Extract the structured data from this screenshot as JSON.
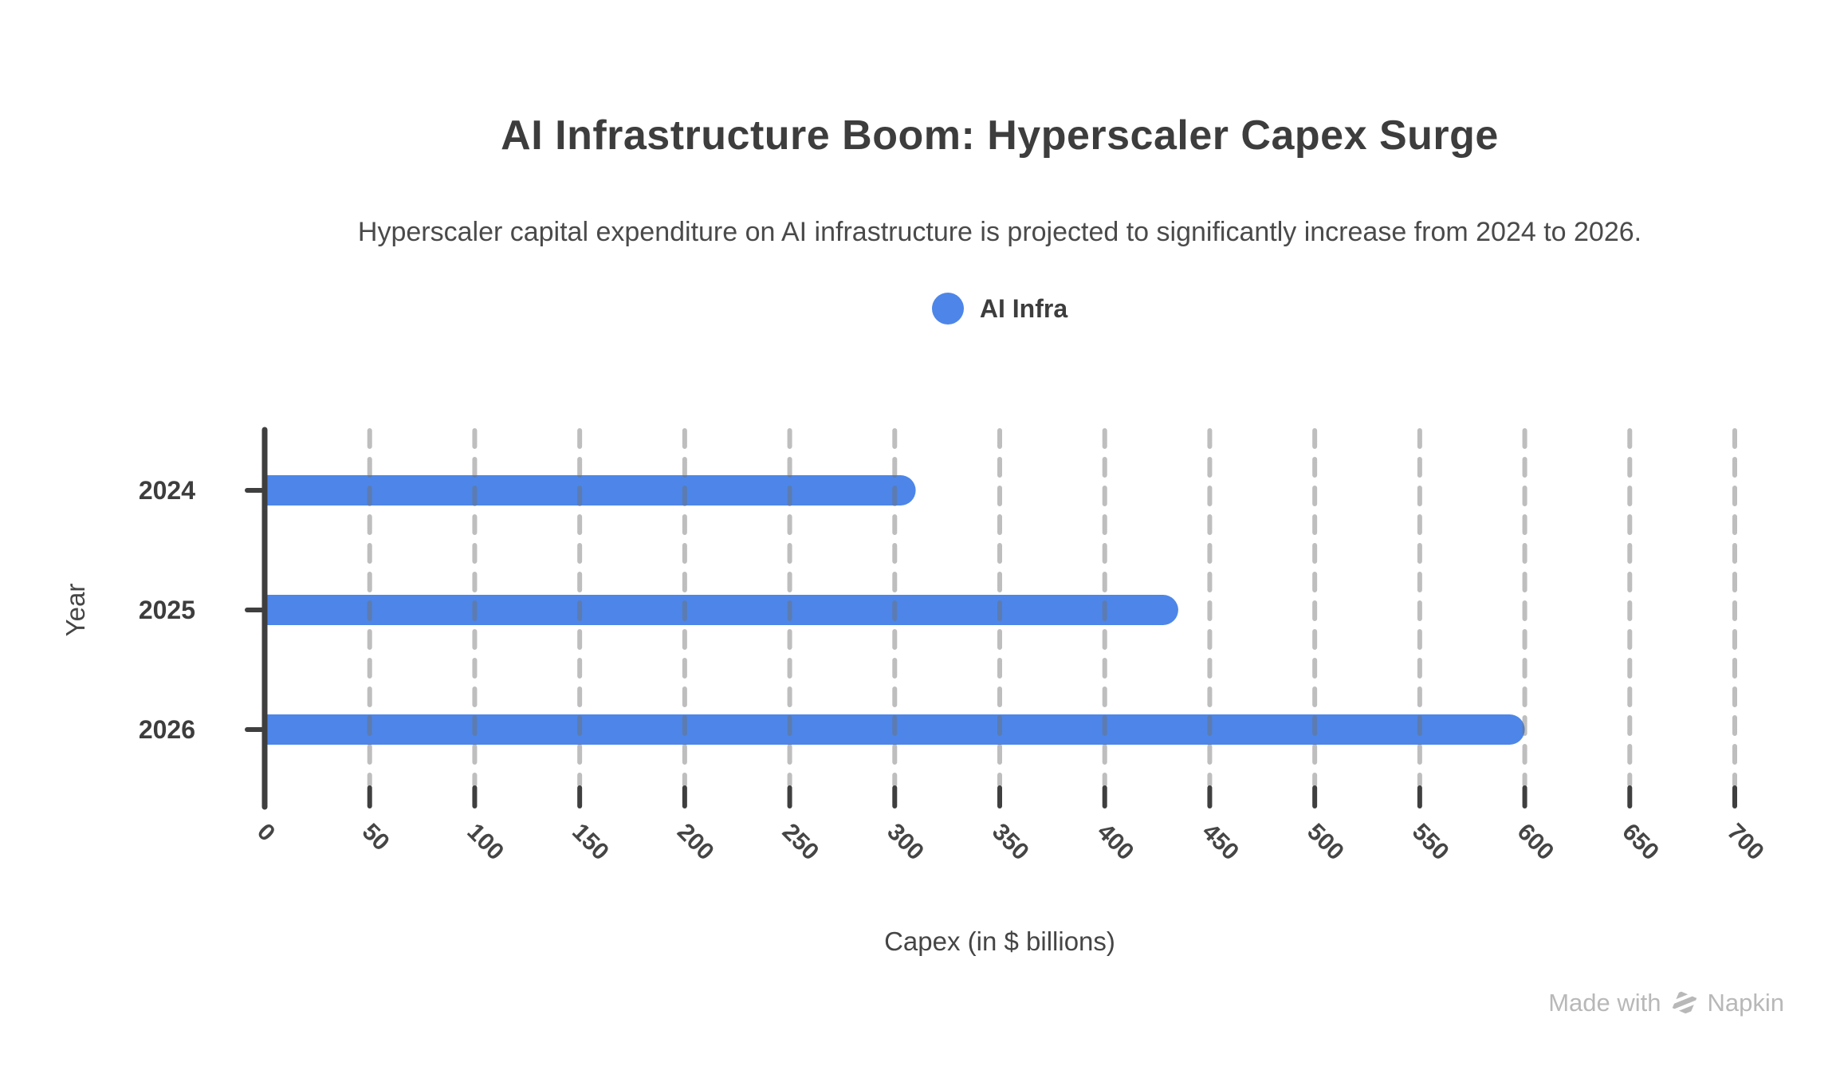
{
  "chart_data": {
    "type": "bar",
    "orientation": "horizontal",
    "title": "AI Infrastructure Boom: Hyperscaler Capex Surge",
    "subtitle": "Hyperscaler capital expenditure on AI infrastructure is projected to significantly increase from 2024 to 2026.",
    "categories": [
      "2024",
      "2025",
      "2026"
    ],
    "series": [
      {
        "name": "AI Infra",
        "values": [
          310,
          435,
          600
        ]
      }
    ],
    "xlabel": "Capex (in $ billions)",
    "ylabel": "Year",
    "xlim": [
      0,
      700
    ],
    "xticks": [
      0,
      50,
      100,
      150,
      200,
      250,
      300,
      350,
      400,
      450,
      500,
      550,
      600,
      650,
      700
    ],
    "grid": "vertical-dashed",
    "legend_position": "top-center",
    "bar_color": "#4d86e8",
    "axis_color": "#3f3f3f",
    "gridline_color": "rgba(110,110,110,0.45)",
    "label_color": "#3d3d3d",
    "tick_label_color": "#454545"
  },
  "watermark": {
    "made_with": "Made with",
    "brand": "Napkin"
  }
}
